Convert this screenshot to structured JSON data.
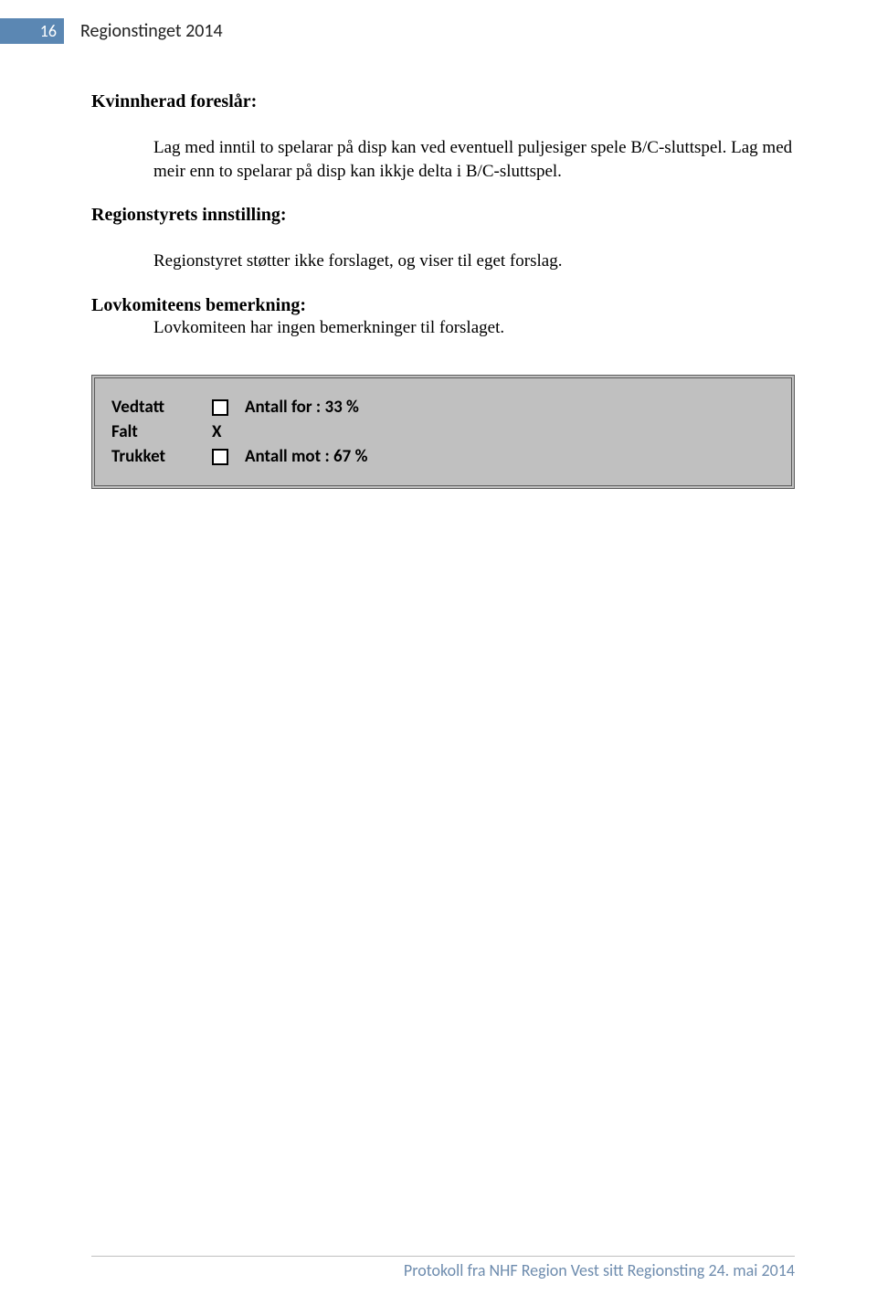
{
  "page_number": "16",
  "header_title": "Regionstinget 2014",
  "section": {
    "title": "Kvinnherad foreslår:",
    "paragraph": "Lag med inntil to spelarar på disp kan ved eventuell puljesiger spele B/C-sluttspel. Lag med meir enn to spelarar på disp kan ikkje delta i B/C-sluttspel.",
    "subheading": "Regionstyrets innstilling:",
    "subparagraph": "Regionstyret støtter ikke forslaget, og viser til eget forslag.",
    "lov_title": "Lovkomiteens bemerkning:",
    "lov_body": "Lovkomiteen har ingen bemerkninger til forslaget."
  },
  "votebox": {
    "rows": [
      {
        "label": "Vedtatt",
        "mark": "",
        "result": "Antall for   : 33 %"
      },
      {
        "label": "Falt",
        "mark": "X",
        "result": ""
      },
      {
        "label": "Trukket",
        "mark": "",
        "result": "Antall mot : 67 %"
      }
    ]
  },
  "footer": "Protokoll fra NHF Region Vest sitt Regionsting 24. mai 2014",
  "colors": {
    "header_box": "#5b87b3",
    "vote_bg": "#c0c0c0",
    "vote_border": "#5c5c5c",
    "footer_text": "#6e8cae",
    "footer_line": "#bfbfbf"
  }
}
